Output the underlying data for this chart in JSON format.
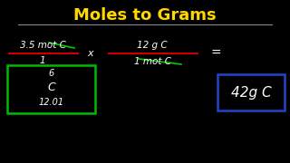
{
  "bg_color": "#000000",
  "title": "Moles to Grams",
  "title_color": "#FFD700",
  "title_fontsize": 13,
  "title_underline_color": "#888888",
  "fraction1_num": "3.5 mot C",
  "fraction1_den": "1",
  "fraction2_num": "12 g C",
  "fraction2_den": "1 mot C",
  "times_symbol": "x",
  "equals_symbol": "=",
  "frac_line_color": "#CC0000",
  "white_text_color": "#FFFFFF",
  "green_box_color": "#00BB00",
  "blue_box_color": "#2244CC",
  "periodic_num": "6",
  "periodic_sym": "C",
  "periodic_mass": "12.01",
  "answer": "42g C",
  "crossout_color": "#00CC00"
}
